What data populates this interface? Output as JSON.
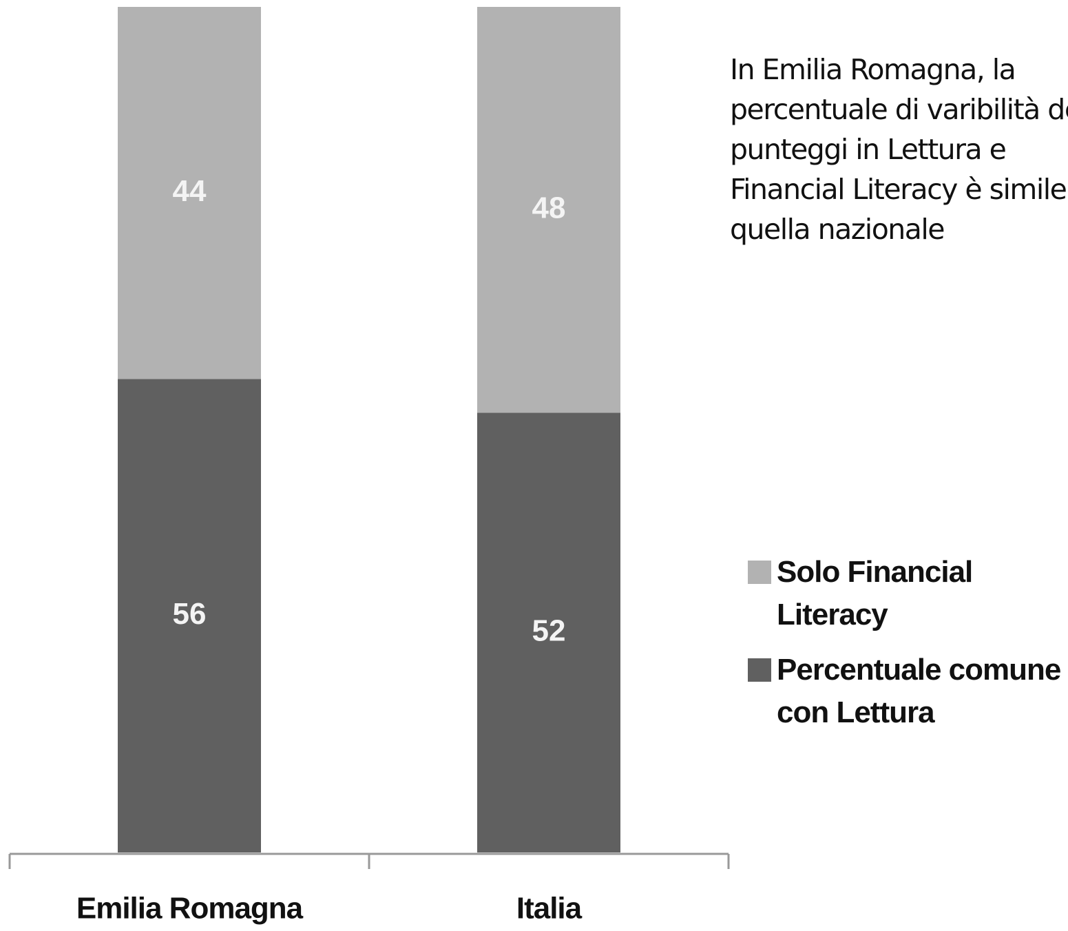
{
  "chart_data": {
    "type": "stacked_bar",
    "categories": [
      "Emilia Romagna",
      "Italia"
    ],
    "series": [
      {
        "name": "Percentuale comune con Lettura",
        "color": "#606060",
        "values": [
          56,
          52
        ]
      },
      {
        "name": "Solo Financial Literacy",
        "color": "#b2b2b2",
        "values": [
          44,
          48
        ]
      }
    ],
    "annotation": "In Emilia Romagna, la percentuale di varibilità dei punteggi in Lettura e Financial Literacy è simile a quella nazionale",
    "legend": "right"
  }
}
